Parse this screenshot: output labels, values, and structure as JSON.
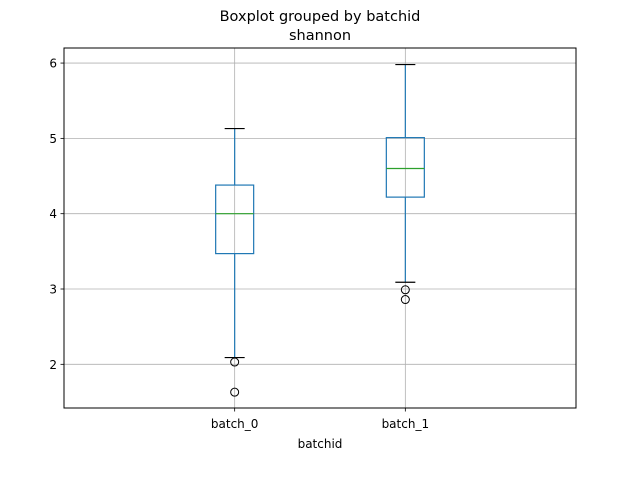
{
  "chart_data": {
    "type": "boxplot",
    "title": "Boxplot grouped by batchid",
    "subtitle": "shannon",
    "xlabel": "batchid",
    "ylabel": "",
    "ylim": [
      1.42,
      6.2
    ],
    "yticks": [
      2,
      3,
      4,
      5,
      6
    ],
    "grid": true,
    "categories": [
      "batch_0",
      "batch_1"
    ],
    "boxes": [
      {
        "category": "batch_0",
        "whisker_low": 2.09,
        "q1": 3.47,
        "median": 4.0,
        "q3": 4.38,
        "whisker_high": 5.13,
        "outliers": [
          2.03,
          1.63
        ]
      },
      {
        "category": "batch_1",
        "whisker_low": 3.09,
        "q1": 4.22,
        "median": 4.6,
        "q3": 5.01,
        "whisker_high": 5.98,
        "outliers": [
          2.99,
          2.86
        ]
      }
    ],
    "colors": {
      "box": "#1f77b4",
      "median": "#2ca02c",
      "grid": "#b0b0b0",
      "outlier": "#000000",
      "cap": "#000000"
    }
  }
}
